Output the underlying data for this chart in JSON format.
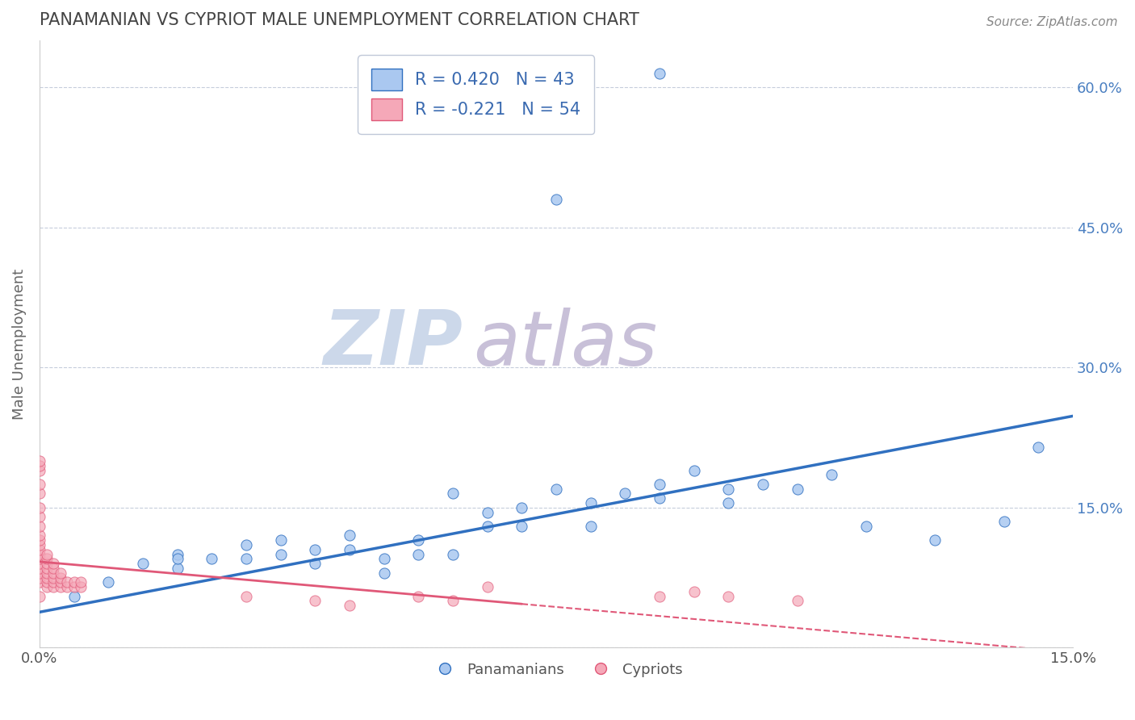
{
  "title": "PANAMANIAN VS CYPRIOT MALE UNEMPLOYMENT CORRELATION CHART",
  "source": "Source: ZipAtlas.com",
  "ylabel": "Male Unemployment",
  "xlim": [
    0.0,
    0.15
  ],
  "ylim": [
    0.0,
    0.65
  ],
  "yticks": [
    0.0,
    0.15,
    0.3,
    0.45,
    0.6
  ],
  "ytick_labels": [
    "",
    "15.0%",
    "30.0%",
    "45.0%",
    "60.0%"
  ],
  "xticks": [
    0.0,
    0.15
  ],
  "xtick_labels": [
    "0.0%",
    "15.0%"
  ],
  "R_pan": 0.42,
  "N_pan": 43,
  "R_cyp": -0.221,
  "N_cyp": 54,
  "pan_color": "#aac8f0",
  "cyp_color": "#f5a8b8",
  "pan_line_color": "#3070c0",
  "cyp_line_color": "#e05878",
  "legend_text_color": "#3a6ab0",
  "pan_scatter": [
    [
      0.005,
      0.055
    ],
    [
      0.01,
      0.07
    ],
    [
      0.015,
      0.09
    ],
    [
      0.02,
      0.085
    ],
    [
      0.02,
      0.1
    ],
    [
      0.025,
      0.095
    ],
    [
      0.03,
      0.095
    ],
    [
      0.03,
      0.11
    ],
    [
      0.035,
      0.1
    ],
    [
      0.035,
      0.115
    ],
    [
      0.04,
      0.09
    ],
    [
      0.04,
      0.105
    ],
    [
      0.045,
      0.105
    ],
    [
      0.045,
      0.12
    ],
    [
      0.05,
      0.08
    ],
    [
      0.05,
      0.095
    ],
    [
      0.055,
      0.1
    ],
    [
      0.055,
      0.115
    ],
    [
      0.06,
      0.165
    ],
    [
      0.065,
      0.13
    ],
    [
      0.065,
      0.145
    ],
    [
      0.07,
      0.13
    ],
    [
      0.07,
      0.15
    ],
    [
      0.075,
      0.17
    ],
    [
      0.08,
      0.13
    ],
    [
      0.08,
      0.155
    ],
    [
      0.085,
      0.165
    ],
    [
      0.09,
      0.16
    ],
    [
      0.09,
      0.175
    ],
    [
      0.095,
      0.19
    ],
    [
      0.1,
      0.155
    ],
    [
      0.1,
      0.17
    ],
    [
      0.105,
      0.175
    ],
    [
      0.11,
      0.17
    ],
    [
      0.115,
      0.185
    ],
    [
      0.12,
      0.13
    ],
    [
      0.13,
      0.115
    ],
    [
      0.14,
      0.135
    ],
    [
      0.145,
      0.215
    ],
    [
      0.075,
      0.48
    ],
    [
      0.09,
      0.615
    ],
    [
      0.02,
      0.095
    ],
    [
      0.06,
      0.1
    ]
  ],
  "cyp_scatter": [
    [
      0.0,
      0.055
    ],
    [
      0.0,
      0.07
    ],
    [
      0.0,
      0.075
    ],
    [
      0.0,
      0.08
    ],
    [
      0.0,
      0.085
    ],
    [
      0.0,
      0.09
    ],
    [
      0.0,
      0.095
    ],
    [
      0.0,
      0.1
    ],
    [
      0.0,
      0.105
    ],
    [
      0.0,
      0.11
    ],
    [
      0.0,
      0.115
    ],
    [
      0.0,
      0.12
    ],
    [
      0.0,
      0.13
    ],
    [
      0.0,
      0.14
    ],
    [
      0.0,
      0.15
    ],
    [
      0.0,
      0.165
    ],
    [
      0.0,
      0.175
    ],
    [
      0.0,
      0.19
    ],
    [
      0.0,
      0.195
    ],
    [
      0.0,
      0.2
    ],
    [
      0.001,
      0.065
    ],
    [
      0.001,
      0.07
    ],
    [
      0.001,
      0.075
    ],
    [
      0.001,
      0.08
    ],
    [
      0.001,
      0.085
    ],
    [
      0.001,
      0.09
    ],
    [
      0.001,
      0.095
    ],
    [
      0.001,
      0.1
    ],
    [
      0.002,
      0.065
    ],
    [
      0.002,
      0.07
    ],
    [
      0.002,
      0.075
    ],
    [
      0.002,
      0.08
    ],
    [
      0.002,
      0.085
    ],
    [
      0.002,
      0.09
    ],
    [
      0.003,
      0.065
    ],
    [
      0.003,
      0.07
    ],
    [
      0.003,
      0.075
    ],
    [
      0.003,
      0.08
    ],
    [
      0.004,
      0.065
    ],
    [
      0.004,
      0.07
    ],
    [
      0.005,
      0.065
    ],
    [
      0.005,
      0.07
    ],
    [
      0.006,
      0.065
    ],
    [
      0.006,
      0.07
    ],
    [
      0.03,
      0.055
    ],
    [
      0.04,
      0.05
    ],
    [
      0.045,
      0.045
    ],
    [
      0.055,
      0.055
    ],
    [
      0.06,
      0.05
    ],
    [
      0.065,
      0.065
    ],
    [
      0.09,
      0.055
    ],
    [
      0.095,
      0.06
    ],
    [
      0.1,
      0.055
    ],
    [
      0.11,
      0.05
    ]
  ]
}
